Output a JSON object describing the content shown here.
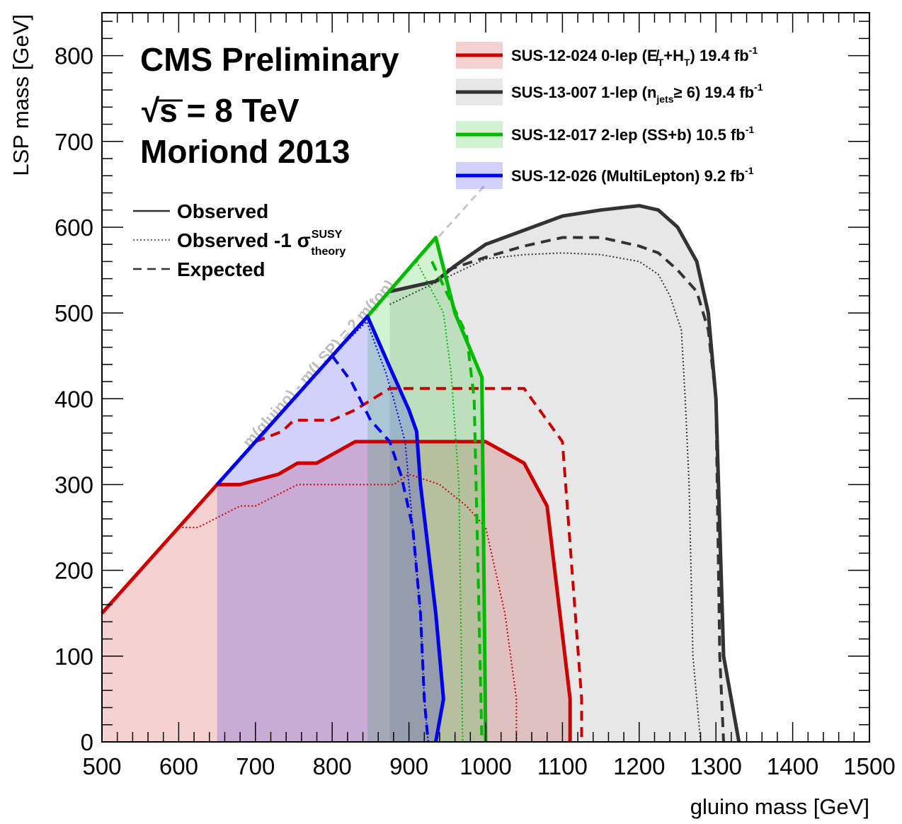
{
  "chart_data": {
    "type": "line",
    "title_lines": [
      "CMS Preliminary",
      "√s = 8 TeV",
      "Moriond 2013"
    ],
    "xlabel": "gluino mass [GeV]",
    "ylabel": "LSP mass [GeV]",
    "xlim": [
      500,
      1500
    ],
    "ylim": [
      0,
      850
    ],
    "xticks": [
      500,
      600,
      700,
      800,
      900,
      1000,
      1100,
      1200,
      1300,
      1400,
      1500
    ],
    "yticks": [
      0,
      100,
      200,
      300,
      400,
      500,
      600,
      700,
      800
    ],
    "grid": false,
    "diagonal_label": "m(gluino) - m(LSP) = 2 m(top)",
    "diagonal_line": [
      [
        500,
        150
      ],
      [
        1000,
        650
      ]
    ],
    "style_legend": [
      {
        "style": "solid",
        "label": "Observed"
      },
      {
        "style": "dotted",
        "label": "Observed -1 σ",
        "sup": "SUSY",
        "sub": "theory"
      },
      {
        "style": "dashed",
        "label": "Expected"
      }
    ],
    "series": [
      {
        "name": "SUS-12-024 0-lep (E̸T+HT) 19.4 fb-1",
        "legend_parts": [
          [
            "SUS-12-024 0-lep (",
            ""
          ],
          [
            "E̸",
            ""
          ],
          [
            "T",
            "sub"
          ],
          [
            "+H",
            ""
          ],
          [
            "T",
            "sub"
          ],
          [
            ") 19.4 fb",
            ""
          ],
          [
            "-1",
            "sup"
          ]
        ],
        "color": "#cc0000",
        "fill": "rgba(204,0,0,0.18)",
        "observed": [
          [
            500,
            150
          ],
          [
            650,
            300
          ],
          [
            680,
            300
          ],
          [
            730,
            312
          ],
          [
            755,
            325
          ],
          [
            780,
            325
          ],
          [
            830,
            350
          ],
          [
            1000,
            350
          ],
          [
            1050,
            325
          ],
          [
            1080,
            275
          ],
          [
            1110,
            50
          ],
          [
            1110,
            0
          ]
        ],
        "observed_minus1": [
          [
            600,
            250
          ],
          [
            625,
            250
          ],
          [
            680,
            275
          ],
          [
            700,
            275
          ],
          [
            755,
            300
          ],
          [
            880,
            300
          ],
          [
            900,
            312
          ],
          [
            940,
            300
          ],
          [
            975,
            275
          ],
          [
            1000,
            250
          ],
          [
            1025,
            150
          ],
          [
            1040,
            50
          ],
          [
            1040,
            0
          ]
        ],
        "expected": [
          [
            700,
            350
          ],
          [
            735,
            362
          ],
          [
            750,
            375
          ],
          [
            800,
            375
          ],
          [
            830,
            387
          ],
          [
            875,
            412
          ],
          [
            1050,
            412
          ],
          [
            1100,
            350
          ],
          [
            1125,
            50
          ],
          [
            1125,
            0
          ]
        ]
      },
      {
        "name": "SUS-13-007 1-lep (njets ≥ 6) 19.4 fb-1",
        "legend_parts": [
          [
            "SUS-13-007 1-lep (n",
            ""
          ],
          [
            "jets",
            "sub"
          ],
          [
            "≥ 6) 19.4 fb",
            ""
          ],
          [
            "-1",
            "sup"
          ]
        ],
        "color": "#333333",
        "fill": "rgba(120,120,120,0.18)",
        "observed": [
          [
            875,
            525
          ],
          [
            935,
            537
          ],
          [
            960,
            555
          ],
          [
            1000,
            580
          ],
          [
            1100,
            613
          ],
          [
            1150,
            620
          ],
          [
            1200,
            625
          ],
          [
            1225,
            620
          ],
          [
            1250,
            600
          ],
          [
            1275,
            560
          ],
          [
            1290,
            500
          ],
          [
            1300,
            400
          ],
          [
            1310,
            100
          ],
          [
            1330,
            0
          ]
        ],
        "observed_minus1": [
          [
            875,
            510
          ],
          [
            1000,
            563
          ],
          [
            1050,
            568
          ],
          [
            1100,
            570
          ],
          [
            1150,
            568
          ],
          [
            1200,
            560
          ],
          [
            1225,
            545
          ],
          [
            1240,
            520
          ],
          [
            1255,
            480
          ],
          [
            1260,
            400
          ],
          [
            1265,
            300
          ],
          [
            1270,
            100
          ],
          [
            1280,
            0
          ]
        ],
        "expected": [
          [
            950,
            550
          ],
          [
            1000,
            565
          ],
          [
            1050,
            578
          ],
          [
            1100,
            588
          ],
          [
            1150,
            588
          ],
          [
            1200,
            578
          ],
          [
            1225,
            570
          ],
          [
            1250,
            550
          ],
          [
            1275,
            525
          ],
          [
            1290,
            480
          ],
          [
            1300,
            400
          ],
          [
            1305,
            100
          ],
          [
            1310,
            0
          ]
        ]
      },
      {
        "name": "SUS-12-017 2-lep (SS+b) 10.5 fb-1",
        "legend_parts": [
          [
            "SUS-12-017 2-lep (SS+b) 10.5 fb",
            ""
          ],
          [
            "-1",
            "sup"
          ]
        ],
        "color": "#00bb00",
        "fill": "rgba(0,187,0,0.18)",
        "observed": [
          [
            846,
            496
          ],
          [
            935,
            588
          ],
          [
            960,
            500
          ],
          [
            995,
            425
          ],
          [
            1000,
            0
          ]
        ],
        "observed_minus1": [
          [
            910,
            560
          ],
          [
            945,
            500
          ],
          [
            955,
            430
          ],
          [
            965,
            300
          ],
          [
            970,
            0
          ]
        ],
        "expected": [
          [
            930,
            560
          ],
          [
            975,
            475
          ],
          [
            985,
            400
          ],
          [
            990,
            200
          ],
          [
            995,
            0
          ]
        ]
      },
      {
        "name": "SUS-12-026 (MultiLepton) 9.2 fb-1",
        "legend_parts": [
          [
            "SUS-12-026 (MultiLepton) 9.2 fb",
            ""
          ],
          [
            "-1",
            "sup"
          ]
        ],
        "color": "#0000ee",
        "fill": "rgba(0,0,238,0.18)",
        "observed": [
          [
            650,
            300
          ],
          [
            846,
            496
          ],
          [
            875,
            437
          ],
          [
            900,
            387
          ],
          [
            910,
            362
          ],
          [
            915,
            300
          ],
          [
            935,
            150
          ],
          [
            945,
            50
          ],
          [
            935,
            0
          ]
        ],
        "observed_minus1": [
          [
            800,
            450
          ],
          [
            845,
            490
          ],
          [
            870,
            430
          ],
          [
            880,
            400
          ],
          [
            895,
            350
          ],
          [
            900,
            300
          ],
          [
            915,
            150
          ],
          [
            920,
            50
          ],
          [
            925,
            0
          ]
        ],
        "expected": [
          [
            800,
            450
          ],
          [
            825,
            420
          ],
          [
            850,
            375
          ],
          [
            875,
            350
          ],
          [
            890,
            310
          ],
          [
            905,
            250
          ],
          [
            915,
            150
          ],
          [
            920,
            50
          ],
          [
            925,
            0
          ]
        ]
      }
    ]
  }
}
